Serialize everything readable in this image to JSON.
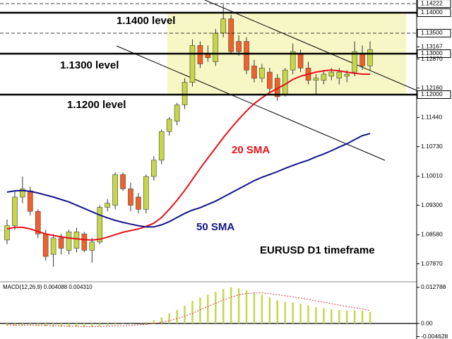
{
  "chart_data": [
    {
      "type": "candlestick",
      "ylim": [
        1.07448,
        1.1431
      ],
      "yticks": [
        {
          "value": 1.14222,
          "label": "1.14222",
          "boxed": true,
          "line": "dashed"
        },
        {
          "value": 1.14,
          "label": "1.14000",
          "boxed": true,
          "line": "solid"
        },
        {
          "value": 1.135,
          "label": "1.13500",
          "boxed": true,
          "line": "dashed"
        },
        1.13167,
        {
          "value": 1.13,
          "label": "1.13000",
          "boxed": true,
          "line": "solid"
        },
        {
          "value": 1.1287,
          "label": "1.12870"
        },
        {
          "value": 1.1216,
          "label": "1.12160"
        },
        {
          "value": 1.12,
          "label": "1.12000",
          "boxed": true,
          "line": "solid"
        },
        {
          "value": 1.1144,
          "label": "1.11440"
        },
        {
          "value": 1.1073,
          "label": "1.10730"
        },
        {
          "value": 1.1001,
          "label": "1.10010"
        },
        {
          "value": 1.093,
          "label": "1.09300"
        },
        {
          "value": 1.0858,
          "label": "1.08580"
        },
        {
          "value": 1.0787,
          "label": "1.07870"
        }
      ],
      "up_color": "#c5d648",
      "down_color": "#f0602a",
      "open": [
        1.0845,
        1.088,
        1.095,
        1.0965,
        1.0915,
        1.086,
        1.081,
        1.085,
        1.082,
        1.0825,
        1.086,
        1.082,
        1.084,
        1.0925,
        1.093,
        1.1005,
        1.097,
        1.095,
        1.092,
        1.1,
        1.104,
        1.111,
        1.1135,
        1.1175,
        1.123,
        1.132,
        1.13,
        1.128,
        1.135,
        1.1385,
        1.133,
        1.133,
        1.127,
        1.124,
        1.1255,
        1.124,
        1.12,
        1.126,
        1.13,
        1.1265,
        1.1235,
        1.1235,
        1.1245,
        1.124,
        1.1245,
        1.1255,
        1.13,
        1.127
      ],
      "high": [
        1.0895,
        1.0965,
        1.1,
        1.0975,
        1.092,
        1.087,
        1.086,
        1.086,
        1.087,
        1.0875,
        1.0865,
        1.085,
        1.093,
        1.0945,
        1.101,
        1.101,
        1.0985,
        1.096,
        1.1005,
        1.105,
        1.1115,
        1.1145,
        1.118,
        1.124,
        1.1335,
        1.133,
        1.132,
        1.136,
        1.142,
        1.1395,
        1.1345,
        1.134,
        1.1285,
        1.1275,
        1.1265,
        1.125,
        1.1265,
        1.1325,
        1.131,
        1.128,
        1.125,
        1.126,
        1.1265,
        1.1265,
        1.126,
        1.133,
        1.132,
        1.133
      ],
      "low": [
        1.0835,
        1.087,
        1.0935,
        1.0905,
        1.085,
        1.0795,
        1.078,
        1.081,
        1.081,
        1.0815,
        1.0815,
        1.079,
        1.0835,
        1.0915,
        1.092,
        1.0965,
        1.0915,
        1.091,
        1.091,
        1.099,
        1.103,
        1.11,
        1.1125,
        1.1165,
        1.122,
        1.1265,
        1.128,
        1.127,
        1.134,
        1.13,
        1.1295,
        1.125,
        1.123,
        1.123,
        1.1205,
        1.1185,
        1.1195,
        1.125,
        1.1255,
        1.1225,
        1.12,
        1.1225,
        1.1235,
        1.1225,
        1.123,
        1.1245,
        1.126,
        1.126
      ],
      "close": [
        1.088,
        1.095,
        1.097,
        1.0915,
        1.086,
        1.0805,
        1.085,
        1.0825,
        1.0865,
        1.0865,
        1.082,
        1.084,
        1.0925,
        1.0935,
        1.1005,
        1.097,
        1.093,
        1.092,
        1.1,
        1.104,
        1.111,
        1.114,
        1.1175,
        1.123,
        1.132,
        1.1275,
        1.129,
        1.135,
        1.1385,
        1.1305,
        1.1305,
        1.126,
        1.124,
        1.1265,
        1.1215,
        1.1195,
        1.126,
        1.1305,
        1.1265,
        1.1235,
        1.124,
        1.125,
        1.1255,
        1.1255,
        1.125,
        1.1305,
        1.127,
        1.131
      ],
      "overlays": [
        {
          "name": "20 SMA",
          "color": "#e8101a",
          "values": [
            1.0872,
            1.0876,
            1.0876,
            1.0872,
            1.0866,
            1.086,
            1.0856,
            1.0853,
            1.085,
            1.0848,
            1.0846,
            1.0845,
            1.0847,
            1.0852,
            1.0858,
            1.0864,
            1.0868,
            1.0872,
            1.0878,
            1.0886,
            1.09,
            1.092,
            1.0942,
            1.0966,
            1.0993,
            1.102,
            1.1045,
            1.107,
            1.1095,
            1.1118,
            1.114,
            1.116,
            1.1178,
            1.1192,
            1.1205,
            1.1215,
            1.1225,
            1.1237,
            1.1245,
            1.125,
            1.1255,
            1.1258,
            1.126,
            1.1258,
            1.1255,
            1.1252,
            1.125,
            1.125
          ]
        },
        {
          "name": "50 SMA",
          "color": "#14148c",
          "values": [
            1.0962,
            1.0965,
            1.0966,
            1.0964,
            1.096,
            1.0955,
            1.095,
            1.0944,
            1.0938,
            1.093,
            1.0922,
            1.0914,
            1.0906,
            1.0899,
            1.0893,
            1.0888,
            1.0884,
            1.088,
            1.0877,
            1.0877,
            1.0882,
            1.089,
            1.09,
            1.091,
            1.0918,
            1.0924,
            1.0932,
            1.094,
            1.095,
            1.096,
            1.097,
            1.098,
            1.099,
            1.0998,
            1.1005,
            1.1012,
            1.102,
            1.1027,
            1.1034,
            1.104,
            1.1048,
            1.1055,
            1.1063,
            1.1072,
            1.108,
            1.109,
            1.11,
            1.1105
          ]
        }
      ],
      "annotations": [
        "1.1400 level",
        "1.1300 level",
        "1.1200 level",
        "EURUSD D1 timeframe"
      ]
    },
    {
      "type": "macd",
      "title": "MACD(12,26,9) 0.004088 0.004310",
      "ylim": [
        -0.0055,
        0.0145
      ],
      "yticks": [
        0.012788,
        {
          "value": 0,
          "label": "0.00"
        },
        -0.004628
      ],
      "histogram": {
        "color": "#c5d648",
        "values": [
          -0.0008,
          -0.0007,
          -0.0006,
          -0.0006,
          -0.0008,
          -0.001,
          -0.0011,
          -0.0012,
          -0.0012,
          -0.0012,
          -0.0013,
          -0.0013,
          -0.001,
          -0.0008,
          -0.0004,
          -0.0002,
          -0.0001,
          0.0,
          0.0005,
          0.0012,
          0.0022,
          0.0035,
          0.0048,
          0.0062,
          0.008,
          0.0092,
          0.0102,
          0.0112,
          0.0122,
          0.0128,
          0.0124,
          0.0118,
          0.011,
          0.0102,
          0.0092,
          0.0082,
          0.0076,
          0.0074,
          0.007,
          0.0064,
          0.0058,
          0.0054,
          0.005,
          0.0048,
          0.0046,
          0.0047,
          0.0045,
          0.0041
        ]
      },
      "signal": {
        "color": "#d04040",
        "values": [
          -0.0005,
          -0.0006,
          -0.0006,
          -0.0006,
          -0.0007,
          -0.0007,
          -0.0008,
          -0.0009,
          -0.001,
          -0.001,
          -0.0011,
          -0.0011,
          -0.0011,
          -0.001,
          -0.0009,
          -0.0008,
          -0.0007,
          -0.0005,
          -0.0003,
          0.0,
          0.0004,
          0.001,
          0.0017,
          0.0026,
          0.0036,
          0.0048,
          0.006,
          0.0072,
          0.0083,
          0.0093,
          0.0101,
          0.0106,
          0.0108,
          0.0108,
          0.0106,
          0.0102,
          0.0098,
          0.0094,
          0.009,
          0.0085,
          0.008,
          0.0075,
          0.007,
          0.0065,
          0.006,
          0.0056,
          0.0052,
          0.0045
        ]
      }
    }
  ]
}
